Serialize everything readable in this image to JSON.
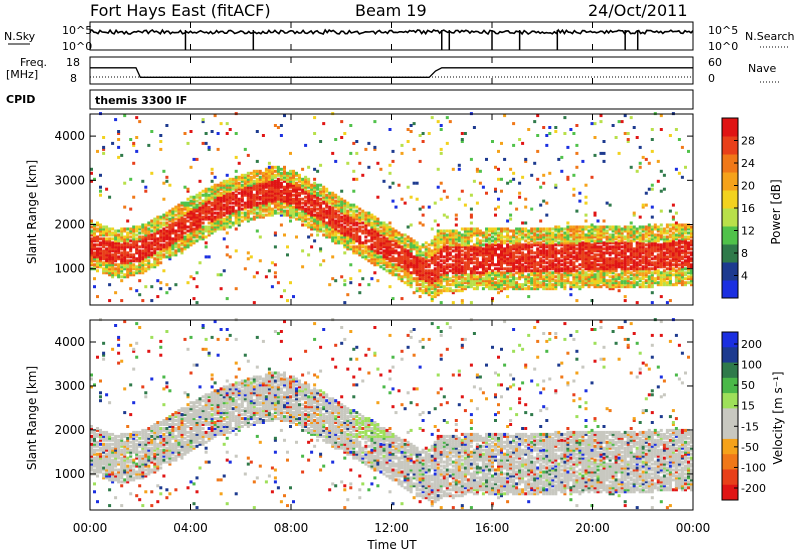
{
  "header": {
    "station": "Fort Hays East (fitACF)",
    "beam": "Beam 19",
    "date": "24/Oct/2011"
  },
  "strip_labels": {
    "nsky": "N.Sky",
    "nsearch": "N.Search",
    "freq": "Freq.",
    "freq_unit": "[MHz]",
    "nave": "Nave",
    "cpid": "CPID",
    "cpid_value": "themis 3300 IF",
    "nsky_ticks": [
      "10^5",
      "10^0"
    ],
    "nsearch_ticks": [
      "10^5",
      "10^0"
    ],
    "freq_ticks": [
      "18",
      "8"
    ],
    "nave_ticks": [
      "60",
      "0"
    ]
  },
  "colors": {
    "power": [
      "#1b2fe0",
      "#1d3a8f",
      "#2f7a4a",
      "#50c24a",
      "#b8e04a",
      "#f2d21e",
      "#f5a21a",
      "#f07818",
      "#e8401a",
      "#e01414"
    ],
    "velocity": [
      "#e01414",
      "#e8401a",
      "#f07818",
      "#f5a21a",
      "#c8c8c0",
      "#c8c8c0",
      "#9ee05a",
      "#4ab848",
      "#2f7a4a",
      "#1d3a8f",
      "#1b2fe0"
    ]
  },
  "chart_data": [
    {
      "type": "line",
      "title": "N.Sky / N.Search",
      "x": [
        "00:00",
        "02:00",
        "04:00",
        "06:00",
        "08:00",
        "10:00",
        "12:00",
        "14:00",
        "16:00",
        "18:00",
        "20:00",
        "22:00",
        "24:00"
      ],
      "series": [
        {
          "name": "N.Sky",
          "values": [
            8000,
            9000,
            9500,
            10000,
            9000,
            8500,
            9000,
            7000,
            9500,
            10000,
            10500,
            11000,
            12000
          ]
        },
        {
          "name": "N.Search",
          "values": [
            1,
            1,
            1,
            1,
            1,
            1,
            1,
            1,
            1,
            1,
            1,
            1,
            1
          ]
        }
      ],
      "ylim": [
        1,
        100000
      ],
      "log_scale": true
    },
    {
      "type": "line",
      "title": "Freq. / Nave",
      "x": [
        "00:00",
        "01:50",
        "02:00",
        "13:30",
        "13:45",
        "14:00",
        "24:00"
      ],
      "series": [
        {
          "name": "Freq.",
          "values": [
            14,
            14,
            10.5,
            10.5,
            12.8,
            14,
            14
          ]
        },
        {
          "name": "Nave",
          "values": [
            15,
            15,
            15,
            15,
            15,
            15,
            15
          ]
        }
      ],
      "ylim": [
        8,
        18
      ]
    },
    {
      "type": "heatmap",
      "title": "Power [dB]",
      "xlabel": "Time UT",
      "ylabel": "Slant Range [km]",
      "x_ticks": [
        "00:00",
        "04:00",
        "08:00",
        "12:00",
        "16:00",
        "20:00",
        "00:00"
      ],
      "y_ticks": [
        1000,
        2000,
        3000,
        4000
      ],
      "colorbar_label": "Power [dB]",
      "colorbar_ticks": [
        4,
        8,
        12,
        16,
        20,
        24,
        28
      ],
      "xlim": [
        0,
        24
      ],
      "ylim": [
        180,
        4500
      ],
      "band_hours": [
        0,
        1,
        2,
        3,
        4,
        5,
        6,
        7,
        7.5,
        8,
        9,
        10,
        11,
        12,
        13,
        13.5,
        14,
        16,
        18,
        20,
        22,
        23.8
      ],
      "band_range_km": [
        1500,
        1300,
        1400,
        1700,
        2050,
        2350,
        2550,
        2700,
        2750,
        2650,
        2350,
        2000,
        1700,
        1350,
        1000,
        900,
        1150,
        1200,
        1200,
        1250,
        1250,
        1300
      ]
    },
    {
      "type": "heatmap",
      "title": "Velocity [m s^-1]",
      "xlabel": "Time UT",
      "ylabel": "Slant Range [km]",
      "x_ticks": [
        "00:00",
        "04:00",
        "08:00",
        "12:00",
        "16:00",
        "20:00",
        "00:00"
      ],
      "y_ticks": [
        1000,
        2000,
        3000,
        4000
      ],
      "colorbar_label": "Velocity [m s⁻¹]",
      "colorbar_ticks": [
        200,
        100,
        50,
        15,
        -15,
        -50,
        -100,
        -200
      ],
      "xlim": [
        0,
        24
      ],
      "ylim": [
        180,
        4500
      ]
    }
  ],
  "axes_text": {
    "xlabel": "Time UT",
    "ylabel": "Slant Range [km]",
    "power_label": "Power [dB]",
    "velocity_label": "Velocity [m s⁻¹]"
  }
}
